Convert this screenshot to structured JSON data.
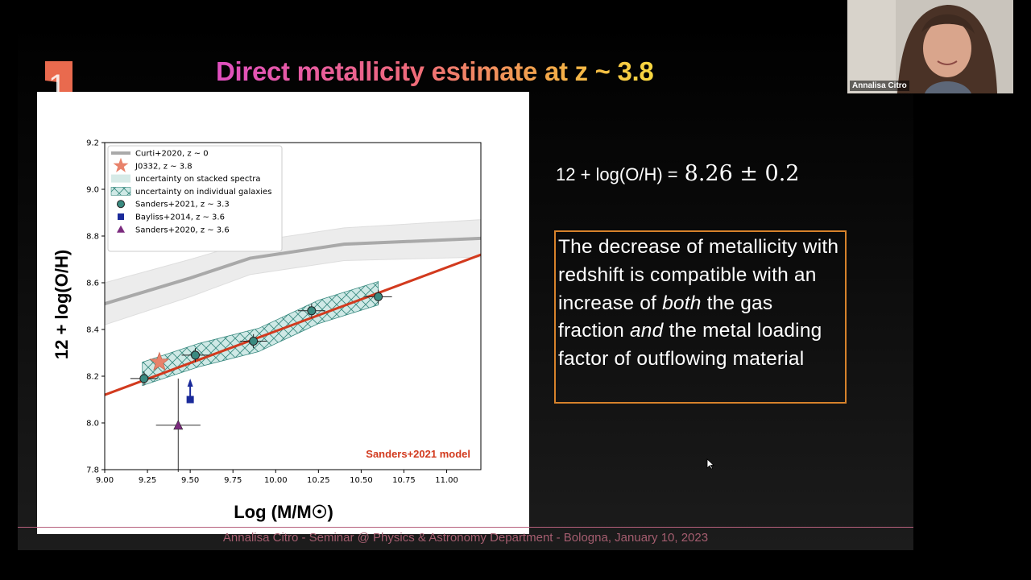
{
  "slide": {
    "number": "1",
    "title": "Direct metallicity estimate at z ~ 3.8",
    "formula_lhs": "12 + log(O/H) =",
    "formula_value": "8.26 ± 0.2",
    "text_box": {
      "before_both": "The decrease of metallicity with redshift is compatible with an increase of",
      "both": "both",
      "between": "the gas fraction",
      "and": "and",
      "after": "the metal loading factor of outflowing material"
    },
    "footer": "Annalisa Citro - Seminar @ Physics & Astronomy Department - Bologna, January 10, 2023",
    "model_label": "Sanders+2021 model",
    "colors": {
      "accent_orange": "#d6822b",
      "model_red": "#d23a1e",
      "footer_pink": "#a45d6f"
    }
  },
  "webcam": {
    "name": "Annalisa Citro"
  },
  "chart_data": {
    "type": "scatter",
    "xlabel": "Log (M/M☉)",
    "ylabel": "12 + log(O/H)",
    "xlim": [
      9.0,
      11.2
    ],
    "ylim": [
      7.8,
      9.2
    ],
    "xticks": [
      "9.00",
      "9.25",
      "9.50",
      "9.75",
      "10.00",
      "10.25",
      "10.50",
      "10.75",
      "11.00"
    ],
    "yticks": [
      "7.8",
      "8.0",
      "8.2",
      "8.4",
      "8.6",
      "8.8",
      "9.0",
      "9.2"
    ],
    "legend_position": "upper-left",
    "legend": [
      "Curti+2020, z ~ 0",
      "J0332, z ~ 3.8",
      "uncertainty on stacked spectra",
      "uncertainty on individual galaxies",
      "Sanders+2021, z ~ 3.3",
      "Bayliss+2014, z ~ 3.6",
      "Sanders+2020, z ~ 3.6"
    ],
    "series": [
      {
        "name": "Curti+2020, z ~ 0",
        "kind": "line",
        "color": "#a9a9a9",
        "x": [
          9.0,
          9.5,
          9.85,
          10.4,
          11.2
        ],
        "y": [
          8.51,
          8.62,
          8.705,
          8.765,
          8.79
        ],
        "band": [
          0.09,
          0.08,
          0.07,
          0.07,
          0.08
        ]
      },
      {
        "name": "Sanders+2021 model",
        "kind": "line",
        "color": "#d23a1e",
        "x": [
          9.0,
          11.2
        ],
        "y": [
          8.12,
          8.72
        ]
      },
      {
        "name": "uncertainty on individual galaxies",
        "kind": "band",
        "color": "#8ecfc9",
        "x": [
          9.22,
          9.55,
          9.9,
          10.25,
          10.6
        ],
        "y": [
          8.21,
          8.29,
          8.355,
          8.475,
          8.555
        ],
        "halfwidth": 0.05
      },
      {
        "name": "Sanders+2021, z ~ 3.3",
        "kind": "points",
        "color": "#3a8a80",
        "x": [
          9.23,
          9.53,
          9.87,
          10.21,
          10.6
        ],
        "y": [
          8.19,
          8.29,
          8.35,
          8.48,
          8.54
        ],
        "xerr": [
          0.08,
          0.08,
          0.08,
          0.08,
          0.08
        ],
        "yerr": [
          0.03,
          0.03,
          0.03,
          0.03,
          0.03
        ]
      },
      {
        "name": "J0332, z ~ 3.8",
        "kind": "star",
        "color": "#e8826b",
        "x": [
          9.32
        ],
        "y": [
          8.26
        ]
      },
      {
        "name": "Bayliss+2014, z ~ 3.6",
        "kind": "square-lowerlimit",
        "color": "#1a2a9a",
        "x": [
          9.5
        ],
        "y": [
          8.1
        ]
      },
      {
        "name": "Sanders+2020, z ~ 3.6",
        "kind": "triangle",
        "color": "#7b2a7e",
        "x": [
          9.43
        ],
        "y": [
          7.99
        ],
        "xerr": [
          0.13
        ],
        "yerr": [
          0.2
        ]
      }
    ]
  }
}
